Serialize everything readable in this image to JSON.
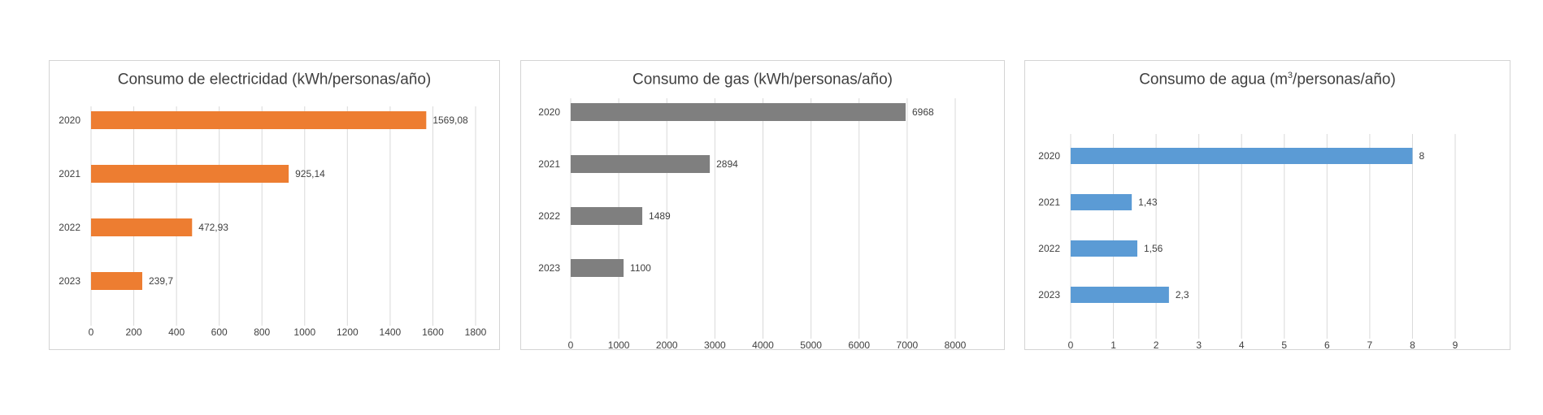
{
  "chart_data": [
    {
      "type": "bar",
      "orientation": "horizontal",
      "title": "Consumo de electricidad (kWh/personas/año)",
      "title_sup": "",
      "title_suffix": "",
      "categories": [
        "2020",
        "2021",
        "2022",
        "2023"
      ],
      "values": [
        1569.08,
        925.14,
        472.93,
        239.7
      ],
      "value_labels": [
        "1569,08",
        "925,14",
        "472,93",
        "239,7"
      ],
      "xlim": [
        0,
        1800
      ],
      "xticks": [
        0,
        200,
        400,
        600,
        800,
        1000,
        1200,
        1400,
        1600,
        1800
      ],
      "grid": true,
      "color": "#ED7D31"
    },
    {
      "type": "bar",
      "orientation": "horizontal",
      "title": "Consumo de gas (kWh/personas/año)",
      "title_sup": "",
      "title_suffix": "",
      "categories": [
        "2020",
        "2021",
        "2022",
        "2023"
      ],
      "values": [
        6968,
        2894,
        1489,
        1100
      ],
      "value_labels": [
        "6968",
        "2894",
        "1489",
        "1100"
      ],
      "xlim": [
        0,
        8000
      ],
      "xticks": [
        0,
        1000,
        2000,
        3000,
        4000,
        5000,
        6000,
        7000,
        8000
      ],
      "grid": true,
      "color": "#7F7F7F"
    },
    {
      "type": "bar",
      "orientation": "horizontal",
      "title": "Consumo de agua (m",
      "title_sup": "3",
      "title_suffix": "/personas/año)",
      "categories": [
        "2020",
        "2021",
        "2022",
        "2023"
      ],
      "values": [
        8,
        1.43,
        1.56,
        2.3
      ],
      "value_labels": [
        "8",
        "1,43",
        "1,56",
        "2,3"
      ],
      "xlim": [
        0,
        9
      ],
      "xticks": [
        0,
        1,
        2,
        3,
        4,
        5,
        6,
        7,
        8,
        9
      ],
      "grid": true,
      "color": "#5B9BD5"
    }
  ]
}
